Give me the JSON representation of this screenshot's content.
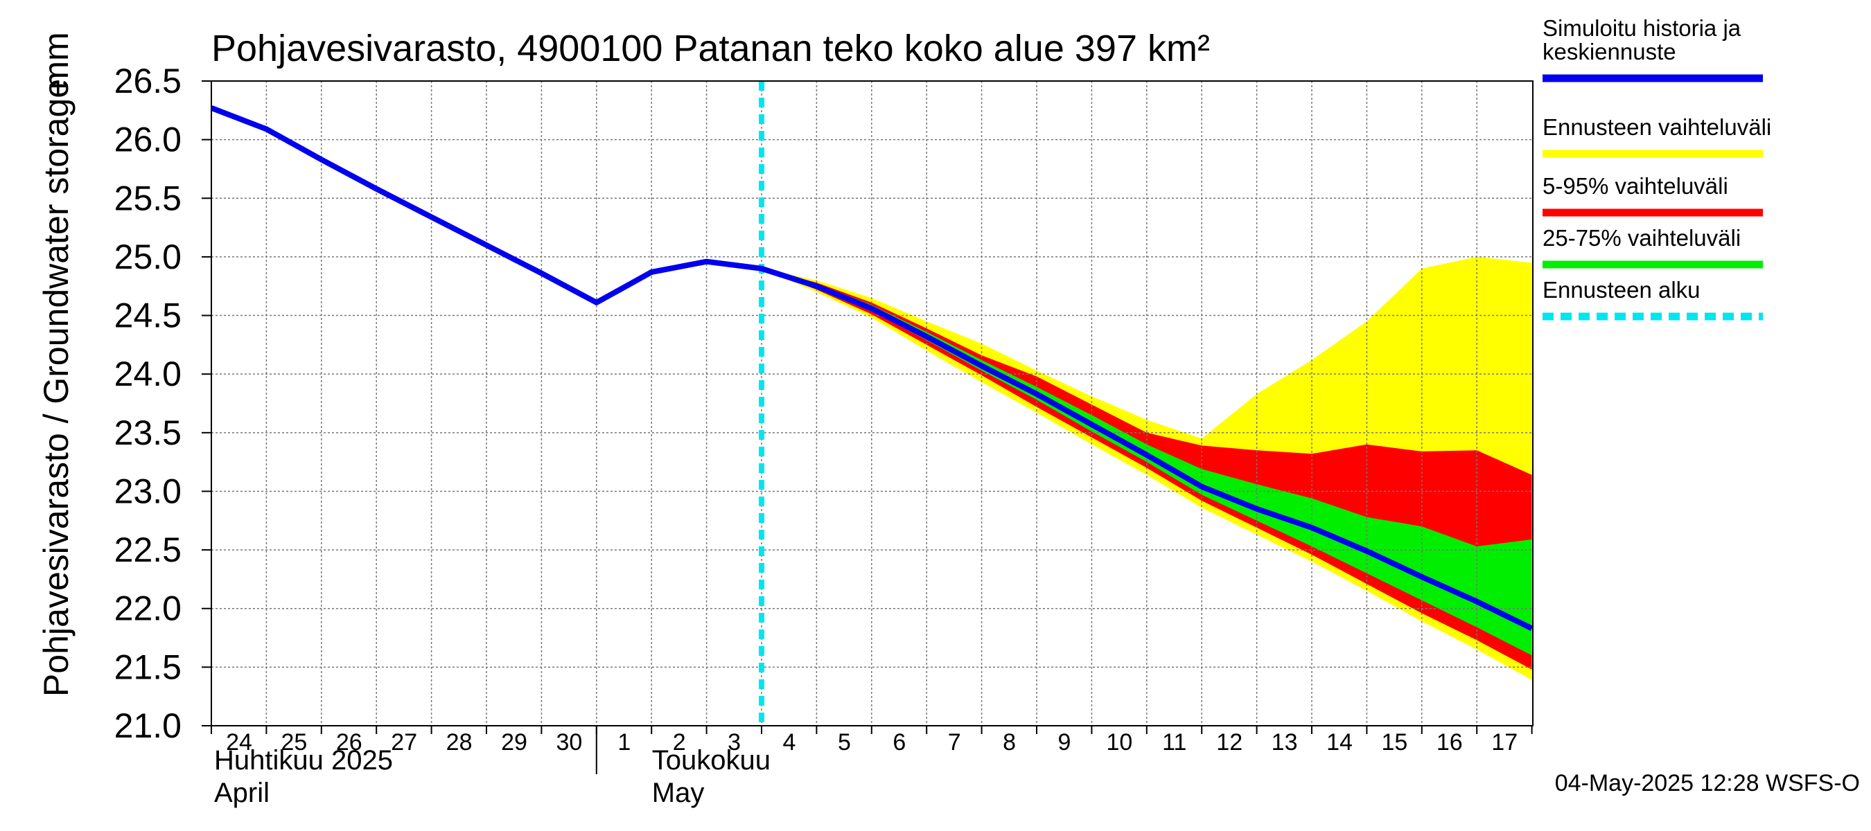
{
  "chart_data": {
    "type": "area",
    "title": "Pohjavesivarasto, 4900100 Patanan teko koko alue 397 km²",
    "ylabel": "Pohjavesivarasto / Groundwater storage",
    "yunit": "mm",
    "ylim": [
      21.0,
      26.5
    ],
    "yticks": [
      "21.0",
      "21.5",
      "22.0",
      "22.5",
      "23.0",
      "23.5",
      "24.0",
      "24.5",
      "25.0",
      "25.5",
      "26.0",
      "26.5"
    ],
    "xdays": [
      "24",
      "25",
      "26",
      "27",
      "28",
      "29",
      "30",
      "1",
      "2",
      "3",
      "4",
      "5",
      "6",
      "7",
      "8",
      "9",
      "10",
      "11",
      "12",
      "13",
      "14",
      "15",
      "16",
      "17"
    ],
    "month_labels": [
      {
        "fi": "Huhtikuu  2025",
        "en": "April"
      },
      {
        "fi": "Toukokuu",
        "en": "May"
      }
    ],
    "grid": true,
    "legend_position": "right",
    "forecast_start": "2025-05-04",
    "timestamp": "04-May-2025 12:28 WSFS-O",
    "series": [
      {
        "name": "Simuloitu historia ja keskiennuste",
        "color": "#0000ee",
        "x": [
          "2025-04-24",
          "2025-04-25",
          "2025-04-26",
          "2025-04-27",
          "2025-04-28",
          "2025-04-29",
          "2025-04-30",
          "2025-05-01",
          "2025-05-02",
          "2025-05-03",
          "2025-05-04",
          "2025-05-05",
          "2025-05-06",
          "2025-05-07",
          "2025-05-08",
          "2025-05-09",
          "2025-05-10",
          "2025-05-11",
          "2025-05-12",
          "2025-05-13",
          "2025-05-14",
          "2025-05-15",
          "2025-05-16",
          "2025-05-17",
          "2025-05-18"
        ],
        "values": [
          26.27,
          26.09,
          25.83,
          25.58,
          25.34,
          25.1,
          24.86,
          24.61,
          24.87,
          24.96,
          24.9,
          24.75,
          24.56,
          24.32,
          24.07,
          23.83,
          23.57,
          23.31,
          23.04,
          22.85,
          22.69,
          22.49,
          22.27,
          22.06,
          21.83
        ]
      }
    ],
    "bands": [
      {
        "name": "Ennusteen vaihteluväli",
        "color": "#ffff00",
        "x": [
          "2025-05-04",
          "2025-05-05",
          "2025-05-06",
          "2025-05-07",
          "2025-05-08",
          "2025-05-09",
          "2025-05-10",
          "2025-05-11",
          "2025-05-12",
          "2025-05-13",
          "2025-05-14",
          "2025-05-15",
          "2025-05-16",
          "2025-05-17",
          "2025-05-18"
        ],
        "upper": [
          24.9,
          24.8,
          24.65,
          24.45,
          24.26,
          24.03,
          23.81,
          23.61,
          23.45,
          23.83,
          24.12,
          24.45,
          24.9,
          25.0,
          24.95
        ],
        "lower": [
          24.9,
          24.7,
          24.48,
          24.2,
          23.93,
          23.67,
          23.4,
          23.14,
          22.86,
          22.63,
          22.4,
          22.15,
          21.89,
          21.65,
          21.39
        ]
      },
      {
        "name": "5-95% vaihteluväli",
        "color": "#ff0000",
        "x": [
          "2025-05-04",
          "2025-05-05",
          "2025-05-06",
          "2025-05-07",
          "2025-05-08",
          "2025-05-09",
          "2025-05-10",
          "2025-05-11",
          "2025-05-12",
          "2025-05-13",
          "2025-05-14",
          "2025-05-15",
          "2025-05-16",
          "2025-05-17",
          "2025-05-18"
        ],
        "upper": [
          24.9,
          24.78,
          24.61,
          24.39,
          24.16,
          23.98,
          23.74,
          23.5,
          23.39,
          23.35,
          23.32,
          23.4,
          23.34,
          23.35,
          23.14
        ],
        "lower": [
          24.9,
          24.72,
          24.51,
          24.25,
          23.99,
          23.72,
          23.46,
          23.2,
          22.92,
          22.69,
          22.46,
          22.21,
          21.96,
          21.73,
          21.48
        ]
      },
      {
        "name": "25-75% vaihteluväli",
        "color": "#00ee00",
        "x": [
          "2025-05-04",
          "2025-05-05",
          "2025-05-06",
          "2025-05-07",
          "2025-05-08",
          "2025-05-09",
          "2025-05-10",
          "2025-05-11",
          "2025-05-12",
          "2025-05-13",
          "2025-05-14",
          "2025-05-15",
          "2025-05-16",
          "2025-05-17",
          "2025-05-18"
        ],
        "upper": [
          24.9,
          24.77,
          24.59,
          24.36,
          24.12,
          23.89,
          23.65,
          23.4,
          23.19,
          23.06,
          22.94,
          22.78,
          22.7,
          22.53,
          22.59
        ],
        "lower": [
          24.9,
          24.74,
          24.54,
          24.29,
          24.03,
          23.78,
          23.51,
          23.25,
          22.97,
          22.75,
          22.53,
          22.3,
          22.07,
          21.84,
          21.6
        ]
      }
    ],
    "legend": [
      {
        "label": "Simuloitu historia ja\nkeskiennuste",
        "color": "#0000ee",
        "style": "solid"
      },
      {
        "label": "Ennusteen vaihteluväli",
        "color": "#ffff00",
        "style": "solid"
      },
      {
        "label": "5-95% vaihteluväli",
        "color": "#ff0000",
        "style": "solid"
      },
      {
        "label": "25-75% vaihteluväli",
        "color": "#00ee00",
        "style": "solid"
      },
      {
        "label": "Ennusteen alku",
        "color": "#00e5ee",
        "style": "dashed"
      }
    ]
  }
}
